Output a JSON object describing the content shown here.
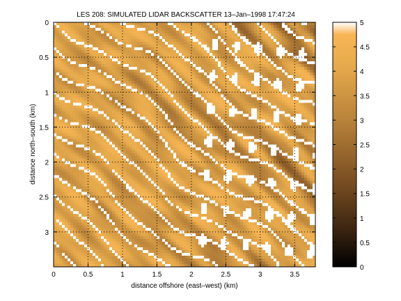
{
  "chart_data": {
    "type": "heatmap",
    "title": "LES 208: SIMULATED LIDAR BACKSCATTER 13–Jan–1998 17:47:24",
    "xlabel": "distance offshore (east–west) (km)",
    "ylabel": "distance north–south (km)",
    "xlim": [
      0,
      3.8
    ],
    "ylim": [
      0,
      3.5
    ],
    "y_reversed": true,
    "x_ticks": [
      "0",
      "0.5",
      "1",
      "1.5",
      "2",
      "2.5",
      "3",
      "3.5"
    ],
    "x_tick_values": [
      0,
      0.5,
      1,
      1.5,
      2,
      2.5,
      3,
      3.5
    ],
    "y_ticks": [
      "0",
      "0.5",
      "1",
      "1.5",
      "2",
      "2.5",
      "3"
    ],
    "y_tick_values": [
      0,
      0.5,
      1,
      1.5,
      2,
      2.5,
      3
    ],
    "grid": true,
    "grid_style": "dotted",
    "colorbar": {
      "range": [
        0,
        5
      ],
      "ticks": [
        "0",
        "0.5",
        "1",
        "1.5",
        "2",
        "2.5",
        "3",
        "3.5",
        "4",
        "4.5",
        "5"
      ],
      "tick_values": [
        0,
        0.5,
        1,
        1.5,
        2,
        2.5,
        3,
        3.5,
        4,
        4.5,
        5
      ],
      "colormap": "copper",
      "colors": [
        "#000000",
        "#3a2410",
        "#7a4e22",
        "#b8823a",
        "#e6aa4c",
        "#f8b555",
        "#ffffff"
      ],
      "saturated_color": "#ffffff"
    },
    "field_description": "backscatter field with diagonal streaks oriented from upper-left to lower-right; values saturate (white) at 5 in many narrow filaments, darker regions near 2-3 concentrated in the right half",
    "streak_angle_deg": 35
  }
}
